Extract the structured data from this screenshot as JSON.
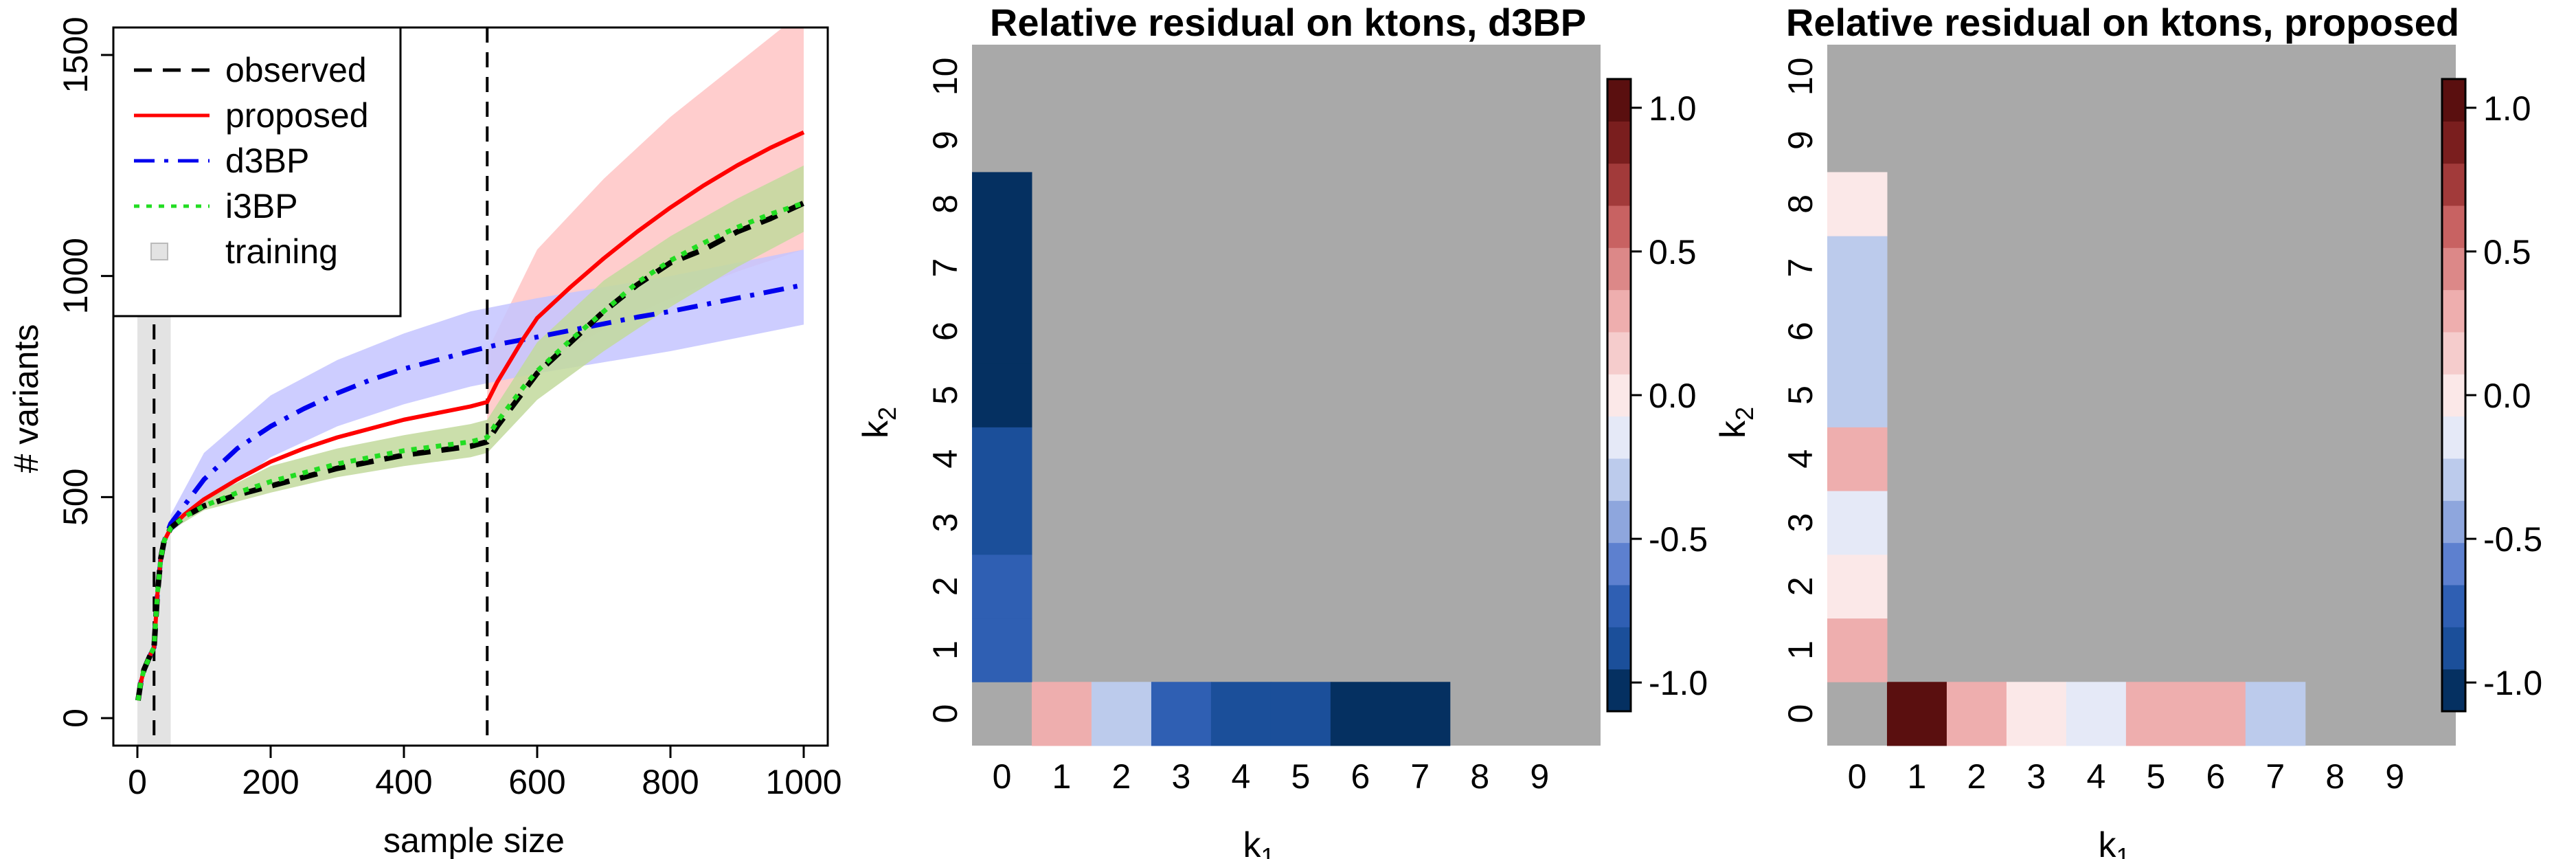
{
  "colors": {
    "observed": "#000000",
    "proposed": "#ff0000",
    "d3BP": "#0000ee",
    "i3BP": "#22dd22",
    "training": "#e3e3e3",
    "na": "#a9a9a9",
    "band_proposed": "#ffc4c4",
    "band_d3BP": "#c4c4ff",
    "band_i3BP": "#c2d99c"
  },
  "chart_data": [
    {
      "type": "line",
      "title": "",
      "xlabel": "sample size",
      "ylabel": "# variants",
      "xlim": [
        0,
        1000
      ],
      "ylim": [
        0,
        1500
      ],
      "x_ticks": [
        0,
        200,
        400,
        600,
        800,
        1000
      ],
      "y_ticks": [
        0,
        500,
        1000,
        1500
      ],
      "legend": {
        "position": "top-left",
        "entries": [
          "observed",
          "proposed",
          "d3BP",
          "i3BP",
          "training"
        ]
      },
      "vlines": [
        25,
        525
      ],
      "training_range": [
        0,
        50
      ],
      "series": [
        {
          "name": "observed",
          "style": "dashed",
          "x": [
            1,
            5,
            10,
            20,
            25,
            30,
            35,
            40,
            50,
            70,
            100,
            150,
            200,
            250,
            300,
            350,
            400,
            450,
            500,
            525,
            540,
            560,
            580,
            600,
            650,
            700,
            750,
            800,
            850,
            900,
            950,
            1000
          ],
          "y": [
            40,
            80,
            110,
            145,
            160,
            280,
            360,
            400,
            430,
            455,
            480,
            505,
            525,
            545,
            565,
            580,
            595,
            605,
            615,
            625,
            660,
            700,
            740,
            780,
            850,
            920,
            980,
            1030,
            1060,
            1100,
            1130,
            1165
          ]
        },
        {
          "name": "proposed",
          "style": "solid",
          "x": [
            1,
            5,
            10,
            20,
            25,
            30,
            35,
            40,
            50,
            70,
            100,
            150,
            200,
            250,
            300,
            350,
            400,
            450,
            500,
            525,
            540,
            560,
            580,
            600,
            650,
            700,
            750,
            800,
            850,
            900,
            950,
            1000
          ],
          "y": [
            40,
            80,
            110,
            145,
            160,
            280,
            360,
            400,
            430,
            460,
            495,
            540,
            580,
            610,
            635,
            655,
            675,
            690,
            705,
            715,
            760,
            810,
            860,
            905,
            975,
            1040,
            1100,
            1155,
            1205,
            1250,
            1290,
            1325
          ]
        },
        {
          "name": "d3BP",
          "style": "dotdash",
          "x": [
            1,
            5,
            10,
            20,
            25,
            30,
            35,
            40,
            50,
            70,
            100,
            150,
            200,
            250,
            300,
            350,
            400,
            450,
            500,
            550,
            600,
            650,
            700,
            750,
            800,
            850,
            900,
            950,
            1000
          ],
          "y": [
            40,
            80,
            110,
            145,
            160,
            280,
            360,
            400,
            440,
            480,
            540,
            610,
            660,
            700,
            735,
            765,
            790,
            810,
            830,
            848,
            862,
            877,
            892,
            907,
            920,
            935,
            950,
            965,
            980
          ]
        },
        {
          "name": "i3BP",
          "style": "dotted",
          "x": [
            1,
            5,
            10,
            20,
            25,
            30,
            35,
            40,
            50,
            70,
            100,
            150,
            200,
            250,
            300,
            350,
            400,
            450,
            500,
            525,
            540,
            560,
            580,
            600,
            650,
            700,
            750,
            800,
            850,
            900,
            950,
            1000
          ],
          "y": [
            40,
            80,
            110,
            145,
            160,
            280,
            360,
            400,
            430,
            455,
            480,
            510,
            535,
            555,
            575,
            590,
            605,
            615,
            625,
            635,
            670,
            710,
            750,
            785,
            855,
            920,
            985,
            1035,
            1075,
            1110,
            1140,
            1165
          ]
        }
      ],
      "bands": [
        {
          "name": "proposed",
          "x": [
            525,
            600,
            700,
            800,
            900,
            1000
          ],
          "lower": [
            640,
            790,
            880,
            950,
            1010,
            1060
          ],
          "upper": [
            830,
            1060,
            1220,
            1360,
            1480,
            1600
          ]
        },
        {
          "name": "d3BP",
          "x": [
            50,
            100,
            200,
            300,
            400,
            500,
            600,
            700,
            800,
            900,
            1000
          ],
          "lower": [
            420,
            480,
            590,
            660,
            710,
            750,
            780,
            805,
            830,
            860,
            890
          ],
          "upper": [
            460,
            600,
            730,
            810,
            870,
            920,
            950,
            975,
            1000,
            1030,
            1060
          ]
        },
        {
          "name": "i3BP",
          "x": [
            50,
            100,
            200,
            300,
            400,
            500,
            525,
            600,
            700,
            800,
            900,
            1000
          ],
          "lower": [
            425,
            470,
            510,
            545,
            570,
            590,
            600,
            720,
            830,
            930,
            1020,
            1100
          ],
          "upper": [
            440,
            495,
            570,
            610,
            640,
            665,
            675,
            850,
            990,
            1090,
            1175,
            1250
          ]
        }
      ]
    },
    {
      "type": "heatmap",
      "title": "Relative residual on ktons, d3BP",
      "xlabel": "k1",
      "ylabel": "k2",
      "x_ticks": [
        0,
        1,
        2,
        3,
        4,
        5,
        6,
        7,
        8,
        9
      ],
      "y_ticks": [
        0,
        1,
        2,
        3,
        4,
        5,
        6,
        7,
        8,
        9,
        10
      ],
      "colorbar_ticks": [
        "1.0",
        "0.5",
        "0.0",
        "-0.5",
        "-1.0"
      ],
      "colorbar_range": [
        -1.1,
        1.1
      ],
      "na_color": "#a9a9a9",
      "cells": [
        {
          "k1": 1,
          "k2": 0,
          "value": 0.3
        },
        {
          "k1": 2,
          "k2": 0,
          "value": -0.35
        },
        {
          "k1": 3,
          "k2": 0,
          "value": -0.7
        },
        {
          "k1": 4,
          "k2": 0,
          "value": -0.85
        },
        {
          "k1": 5,
          "k2": 0,
          "value": -0.85
        },
        {
          "k1": 6,
          "k2": 0,
          "value": -1.05
        },
        {
          "k1": 7,
          "k2": 0,
          "value": -1.05
        },
        {
          "k1": 0,
          "k2": 1,
          "value": -0.7
        },
        {
          "k1": 0,
          "k2": 2,
          "value": -0.7
        },
        {
          "k1": 0,
          "k2": 3,
          "value": -0.85
        },
        {
          "k1": 0,
          "k2": 4,
          "value": -0.85
        },
        {
          "k1": 0,
          "k2": 5,
          "value": -1.05
        },
        {
          "k1": 0,
          "k2": 6,
          "value": -1.05
        },
        {
          "k1": 0,
          "k2": 7,
          "value": -1.05
        },
        {
          "k1": 0,
          "k2": 8,
          "value": -1.05
        }
      ]
    },
    {
      "type": "heatmap",
      "title": "Relative residual on ktons, proposed",
      "xlabel": "k1",
      "ylabel": "k2",
      "x_ticks": [
        0,
        1,
        2,
        3,
        4,
        5,
        6,
        7,
        8,
        9
      ],
      "y_ticks": [
        0,
        1,
        2,
        3,
        4,
        5,
        6,
        7,
        8,
        9,
        10
      ],
      "colorbar_ticks": [
        "1.0",
        "0.5",
        "0.0",
        "-0.5",
        "-1.0"
      ],
      "colorbar_range": [
        -1.1,
        1.1
      ],
      "na_color": "#a9a9a9",
      "cells": [
        {
          "k1": 1,
          "k2": 0,
          "value": 1.05
        },
        {
          "k1": 2,
          "k2": 0,
          "value": 0.25
        },
        {
          "k1": 3,
          "k2": 0,
          "value": 0.05
        },
        {
          "k1": 4,
          "k2": 0,
          "value": -0.1
        },
        {
          "k1": 5,
          "k2": 0,
          "value": 0.25
        },
        {
          "k1": 6,
          "k2": 0,
          "value": 0.25
        },
        {
          "k1": 7,
          "k2": 0,
          "value": -0.3
        },
        {
          "k1": 0,
          "k2": 1,
          "value": 0.25
        },
        {
          "k1": 0,
          "k2": 2,
          "value": 0.05
        },
        {
          "k1": 0,
          "k2": 3,
          "value": -0.1
        },
        {
          "k1": 0,
          "k2": 4,
          "value": 0.25
        },
        {
          "k1": 0,
          "k2": 5,
          "value": -0.3
        },
        {
          "k1": 0,
          "k2": 6,
          "value": -0.3
        },
        {
          "k1": 0,
          "k2": 7,
          "value": -0.3
        },
        {
          "k1": 0,
          "k2": 8,
          "value": 0.05
        }
      ]
    }
  ]
}
